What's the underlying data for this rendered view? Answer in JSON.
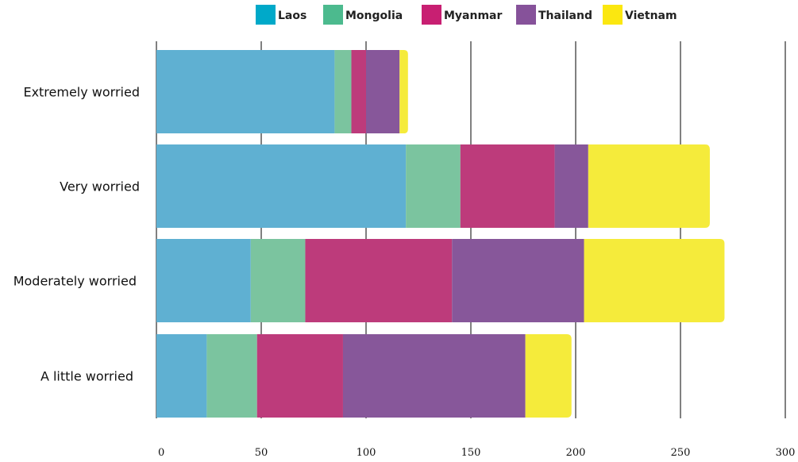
{
  "chart_data": {
    "type": "bar",
    "orientation": "horizontal",
    "stacked": true,
    "title": "",
    "xlabel": "",
    "ylabel": "",
    "categories": [
      "Extremely worried",
      "Very worried",
      "Moderately worried",
      "A little worried"
    ],
    "series": [
      {
        "name": "Laos",
        "color": "#5fb0d2",
        "legend_color": "#00a9c9",
        "values": [
          85,
          119,
          45,
          24
        ]
      },
      {
        "name": "Mongolia",
        "color": "#7bc49f",
        "legend_color": "#4cba8e",
        "values": [
          8,
          26,
          26,
          24
        ]
      },
      {
        "name": "Myanmar",
        "color": "#bd3b7b",
        "legend_color": "#c81f72",
        "values": [
          7,
          45,
          70,
          41
        ]
      },
      {
        "name": "Thailand",
        "color": "#87579a",
        "legend_color": "#86529a",
        "values": [
          16,
          16,
          63,
          87
        ]
      },
      {
        "name": "Vietnam",
        "color": "#f5eb3b",
        "legend_color": "#fbe710",
        "values": [
          4,
          58,
          67,
          22
        ]
      }
    ],
    "xlim": [
      0,
      300
    ],
    "xticks": [
      0,
      50,
      100,
      150,
      200,
      250,
      300
    ],
    "grid": true,
    "legend_position": "top"
  }
}
